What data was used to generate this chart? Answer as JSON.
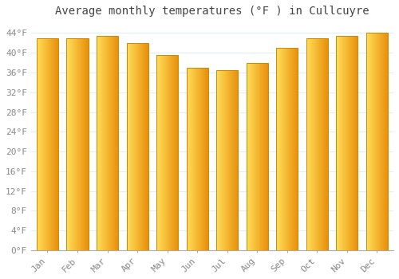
{
  "title": "Average monthly temperatures (°F ) in Cullcuyre",
  "months": [
    "Jan",
    "Feb",
    "Mar",
    "Apr",
    "May",
    "Jun",
    "Jul",
    "Aug",
    "Sep",
    "Oct",
    "Nov",
    "Dec"
  ],
  "values": [
    43,
    43,
    43.5,
    42,
    39.5,
    37,
    36.5,
    38,
    41,
    43,
    43.5,
    44
  ],
  "bar_color_left": "#FFD966",
  "bar_color_right": "#E8900A",
  "bar_edge_color": "#CC8800",
  "background_color": "#FFFFFF",
  "grid_color": "#DDEEFF",
  "title_fontsize": 10,
  "tick_label_fontsize": 8,
  "ylim": [
    0,
    46
  ],
  "ytick_values": [
    0,
    4,
    8,
    12,
    16,
    20,
    24,
    28,
    32,
    36,
    40,
    44
  ]
}
